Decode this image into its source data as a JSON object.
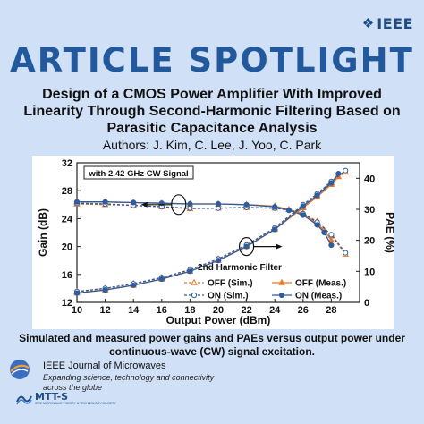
{
  "branding": {
    "ieee": "IEEE",
    "ieee_icon": "ieee-diamond-icon"
  },
  "header": {
    "spotlight": "ARTICLE SPOTLIGHT"
  },
  "article": {
    "title": "Design of a CMOS Power Amplifier With Improved Linearity Through Second-Harmonic Filtering Based on Parasitic Capacitance Analysis",
    "authors": "Authors: J. Kim, C. Lee, J. Yoo, C. Park"
  },
  "caption": "Simulated and measured power gains and PAEs versus output power under continuous-wave (CW) signal excitation.",
  "journal": {
    "name": "IEEE Journal of Microwaves",
    "tagline": "Expanding science, technology and connectivity across the globe",
    "icon": "globe-swirl-icon"
  },
  "society": {
    "name": "MTT-S",
    "subtitle": "IEEE MICROWAVE THEORY & TECHNOLOGY SOCIETY",
    "icon": "mtts-wave-icon"
  },
  "colors": {
    "sim": "#e8772a",
    "meas": "#2f5c9c",
    "accent": "#21599c",
    "background": "#cfe0f7"
  },
  "chart_data": {
    "type": "line",
    "annotation": "with 2.42 GHz CW Signal",
    "legend_title": "2nd Harmonic Filter",
    "legend_position": "bottom-right",
    "xlabel": "Output Power (dBm)",
    "ylabel": "Gain (dB)",
    "y2label": "PAE (%)",
    "xlim": [
      10,
      30
    ],
    "ylim": [
      12,
      32
    ],
    "y2lim": [
      0,
      45
    ],
    "xticks": [
      10,
      12,
      14,
      16,
      18,
      20,
      22,
      24,
      26,
      28
    ],
    "yticks": [
      12,
      16,
      20,
      24,
      28,
      32
    ],
    "y2ticks": [
      0,
      10,
      20,
      30,
      40
    ],
    "series": [
      {
        "name": "OFF (Sim.)",
        "quantity": "gain",
        "style": "dash",
        "marker": "open-triangle",
        "color": "#e8772a",
        "x": [
          10,
          12,
          14,
          16,
          18,
          20,
          22,
          24,
          25,
          26,
          27,
          28,
          29
        ],
        "y": [
          26.1,
          26.0,
          25.9,
          25.7,
          25.4,
          25.5,
          25.6,
          25.5,
          25.3,
          24.8,
          23.6,
          21.6,
          18.9
        ]
      },
      {
        "name": "OFF (Meas.)",
        "quantity": "gain",
        "style": "solid",
        "marker": "filled-triangle",
        "color": "#e8772a",
        "x": [
          10,
          12,
          14,
          16,
          18,
          20,
          22,
          24,
          25,
          26,
          27,
          27.5,
          28
        ],
        "y": [
          26.4,
          26.4,
          26.3,
          26.2,
          26.1,
          26.1,
          26.0,
          25.8,
          25.3,
          24.7,
          23.3,
          22.3,
          20.9
        ]
      },
      {
        "name": "ON (Sim.)",
        "quantity": "gain",
        "style": "dash",
        "marker": "open-circle",
        "color": "#2f5c9c",
        "x": [
          10,
          12,
          14,
          16,
          18,
          20,
          22,
          24,
          25,
          26,
          27,
          28,
          29
        ],
        "y": [
          26.2,
          26.1,
          25.9,
          25.7,
          25.5,
          25.5,
          25.6,
          25.5,
          25.2,
          24.7,
          23.5,
          21.7,
          19.1
        ]
      },
      {
        "name": "ON (Meas.)",
        "quantity": "gain",
        "style": "solid",
        "marker": "filled-circle",
        "color": "#2f5c9c",
        "x": [
          10,
          12,
          14,
          16,
          18,
          20,
          22,
          24,
          25,
          26,
          27,
          27.5,
          28
        ],
        "y": [
          26.4,
          26.4,
          26.3,
          26.2,
          26.1,
          26.1,
          26.0,
          25.7,
          25.2,
          24.5,
          23.1,
          22.0,
          20.2
        ]
      },
      {
        "name": "OFF (Sim.)",
        "quantity": "pae",
        "style": "dash",
        "marker": "open-triangle",
        "color": "#e8772a",
        "x": [
          10,
          12,
          14,
          16,
          18,
          20,
          22,
          24,
          26,
          27,
          28,
          29
        ],
        "y": [
          3.5,
          4.5,
          6.0,
          8.0,
          10.5,
          14.0,
          18.5,
          24.0,
          31.0,
          34.5,
          38.5,
          42.0
        ]
      },
      {
        "name": "OFF (Meas.)",
        "quantity": "pae",
        "style": "solid",
        "marker": "filled-triangle",
        "color": "#e8772a",
        "x": [
          10,
          12,
          14,
          16,
          18,
          20,
          22,
          24,
          26,
          27,
          28,
          28.5
        ],
        "y": [
          3.0,
          4.0,
          5.5,
          7.5,
          10.0,
          13.5,
          18.0,
          23.5,
          30.5,
          34.0,
          38.0,
          40.5
        ]
      },
      {
        "name": "ON (Sim.)",
        "quantity": "pae",
        "style": "dash",
        "marker": "open-circle",
        "color": "#2f5c9c",
        "x": [
          10,
          12,
          14,
          16,
          18,
          20,
          22,
          24,
          26,
          27,
          28,
          29
        ],
        "y": [
          3.5,
          4.5,
          6.0,
          8.0,
          10.5,
          14.0,
          18.5,
          24.0,
          31.5,
          35.0,
          39.0,
          42.5
        ]
      },
      {
        "name": "ON (Meas.)",
        "quantity": "pae",
        "style": "solid",
        "marker": "filled-circle",
        "color": "#2f5c9c",
        "x": [
          10,
          12,
          14,
          16,
          18,
          20,
          22,
          24,
          26,
          27,
          28,
          28.5
        ],
        "y": [
          3.0,
          4.0,
          5.5,
          7.5,
          10.0,
          13.5,
          18.0,
          23.5,
          31.0,
          34.5,
          38.5,
          41.5
        ]
      }
    ]
  }
}
